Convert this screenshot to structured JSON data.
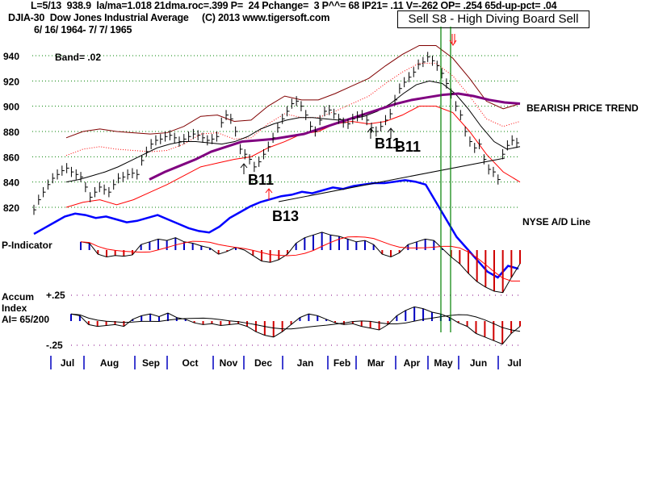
{
  "header": {
    "line1": "L=5/13  938.9  la/ma=1.018 21dma.roc=.399 P=  24 Pchange=  3 P^^= 68 IP21= .11 V=-262 OP= .254 65d-up-pct= .04",
    "symbol": "DJIA-30  Dow Jones Industrial Average",
    "copyright": "(C) 2013 www.tigersoft.com",
    "date_range": "6/ 16/ 1964- 7/ 7/ 1965",
    "signal_box": "Sell S8 - High Diving Board Sell"
  },
  "chart_data": {
    "type": "line",
    "title": "DJIA-30 Dow Jones Industrial Average",
    "subtitle": "6/16/1964 - 7/7/1965",
    "panels": [
      {
        "name": "price",
        "yticks": [
          820,
          840,
          860,
          880,
          900,
          920,
          940
        ],
        "ylim": [
          810,
          950
        ],
        "band_label": "Band= .02",
        "grid": true,
        "series": [
          {
            "name": "DJIA close",
            "color": "#000000",
            "style": "ohlc-bars",
            "values": [
              818,
              826,
              832,
              838,
              843,
              846,
              849,
              851,
              848,
              846,
              844,
              836,
              828,
              832,
              836,
              834,
              832,
              838,
              843,
              844,
              846,
              847,
              846,
              857,
              864,
              870,
              873,
              874,
              876,
              877,
              875,
              872,
              874,
              876,
              878,
              877,
              875,
              873,
              874,
              876,
              887,
              893,
              890,
              880,
              866,
              862,
              858,
              852,
              856,
              862,
              868,
              875,
              883,
              890,
              896,
              902,
              904,
              900,
              893,
              884,
              880,
              889,
              896,
              897,
              894,
              890,
              887,
              886,
              890,
              892,
              893,
              889,
              883,
              880,
              884,
              889,
              894,
              905,
              914,
              919,
              923,
              927,
              933,
              935,
              939,
              936,
              932,
              926,
              918,
              910,
              900,
              893,
              880,
              872,
              867,
              870,
              858,
              850,
              848,
              842,
              862,
              869,
              873,
              871
            ]
          },
          {
            "name": "21-day MA",
            "color": "#000000",
            "values": [
              840,
              842,
              845,
              848,
              852,
              857,
              862,
              867,
              870,
              872,
              872,
              871,
              870,
              872,
              876,
              882,
              886,
              889,
              891,
              891,
              890,
              889,
              890,
              892,
              896,
              902,
              910,
              917,
              920,
              918,
              910,
              898,
              884,
              872,
              866,
              868
            ]
          },
          {
            "name": "65-day MA",
            "color": "#800080",
            "values": [
              842,
              848,
              853,
              858,
              864,
              868,
              872,
              873,
              874,
              876,
              878,
              882,
              886,
              890,
              894,
              898,
              902,
              905,
              907,
              909,
              910,
              908,
              905,
              903,
              902
            ]
          },
          {
            "name": "Upper band",
            "color": "#800000",
            "values": [
              875,
              880,
              882,
              880,
              879,
              878,
              879,
              884,
              892,
              893,
              888,
              889,
              900,
              908,
              905,
              905,
              910,
              916,
              922,
              932,
              941,
              948,
              948,
              938,
              922,
              904,
              898,
              902
            ]
          },
          {
            "name": "Lower band",
            "color": "#ff0000",
            "values": [
              820,
              824,
              826,
              822,
              826,
              832,
              838,
              845,
              852,
              855,
              858,
              860,
              867,
              872,
              878,
              880,
              886,
              888,
              886,
              888,
              893,
              900,
              900,
              895,
              880,
              862,
              848,
              840
            ]
          }
        ],
        "annotations": [
          {
            "text": "B11",
            "date": "Nov",
            "value": 846
          },
          {
            "text": "B13",
            "date": "Dec",
            "value": 820
          },
          {
            "text": "B11",
            "date": "Mar",
            "value": 878
          },
          {
            "text": "B11",
            "date": "Mar",
            "value": 876
          },
          {
            "text": "BEARISH PRICE TREND",
            "date": "Jul",
            "value": 900
          }
        ]
      },
      {
        "name": "NYSE A/D Line",
        "color": "#0000ff",
        "values": [
          0,
          4,
          8,
          12,
          14,
          13,
          11,
          12,
          10,
          8,
          9,
          11,
          13,
          10,
          7,
          4,
          2,
          1,
          5,
          11,
          15,
          19,
          22,
          24,
          26,
          27,
          29,
          28,
          30,
          32,
          31,
          33,
          34,
          35,
          35,
          36,
          37,
          36,
          34,
          22,
          10,
          -2,
          -10,
          -18,
          -26,
          -30,
          -22,
          -24
        ],
        "trendline": true
      },
      {
        "name": "P-Indicator",
        "zero_line": true,
        "values": [
          12,
          10,
          -6,
          -10,
          -8,
          -9,
          -7,
          8,
          12,
          16,
          14,
          18,
          12,
          10,
          6,
          3,
          -6,
          -2,
          4,
          0,
          -8,
          -16,
          -18,
          -14,
          -6,
          10,
          18,
          22,
          26,
          22,
          20,
          16,
          12,
          14,
          8,
          -6,
          -10,
          -4,
          8,
          12,
          16,
          14,
          2,
          -10,
          -20,
          -34,
          -46,
          -54,
          -60,
          -62,
          -40,
          -20
        ],
        "ma_color": "#ff0000"
      },
      {
        "name": "Accum Index",
        "label": "AI= 65/200",
        "yticks": [
          "+.25",
          "-.25"
        ],
        "values": [
          8,
          6,
          -4,
          -6,
          -5,
          -4,
          -6,
          2,
          6,
          8,
          5,
          9,
          4,
          2,
          -2,
          -4,
          -3,
          -5,
          -4,
          -3,
          -6,
          -12,
          -16,
          -18,
          -12,
          -4,
          4,
          8,
          6,
          2,
          -2,
          -4,
          -3,
          -6,
          -8,
          -10,
          -4,
          6,
          12,
          16,
          14,
          10,
          8,
          4,
          -2,
          -6,
          -14,
          -18,
          -22,
          -26,
          -14,
          -6
        ],
        "ma_color": "#000000"
      }
    ],
    "x_tick_labels": [
      "Jul",
      "Aug",
      "Sep",
      "Oct",
      "Nov",
      "Dec",
      "Jan",
      "Feb",
      "Mar",
      "Apr",
      "May",
      "Jun",
      "Jul"
    ],
    "panel_labels": {
      "ad_line": "NYSE A/D Line",
      "p_indicator": "P-Indicator",
      "accum_title": "Accum",
      "accum_title2": "Index",
      "accum_ai": "AI= 65/200",
      "accum_top": "+.25",
      "accum_bottom": "-.25"
    },
    "signal_markers": [
      {
        "type": "sell",
        "month": "May",
        "color": "#008000"
      },
      {
        "type": "sell",
        "month": "May",
        "color": "#008000"
      }
    ]
  },
  "colors": {
    "grid": "#008000",
    "price_bars": "#000000",
    "ma65": "#800080",
    "upper_band": "#800000",
    "lower_band": "#ff0000",
    "ad_line": "#0000ff",
    "positive_hist": "#0000c0",
    "negative_hist": "#d00000",
    "signal_line": "#008000",
    "axis_tick": "#0000c0"
  }
}
